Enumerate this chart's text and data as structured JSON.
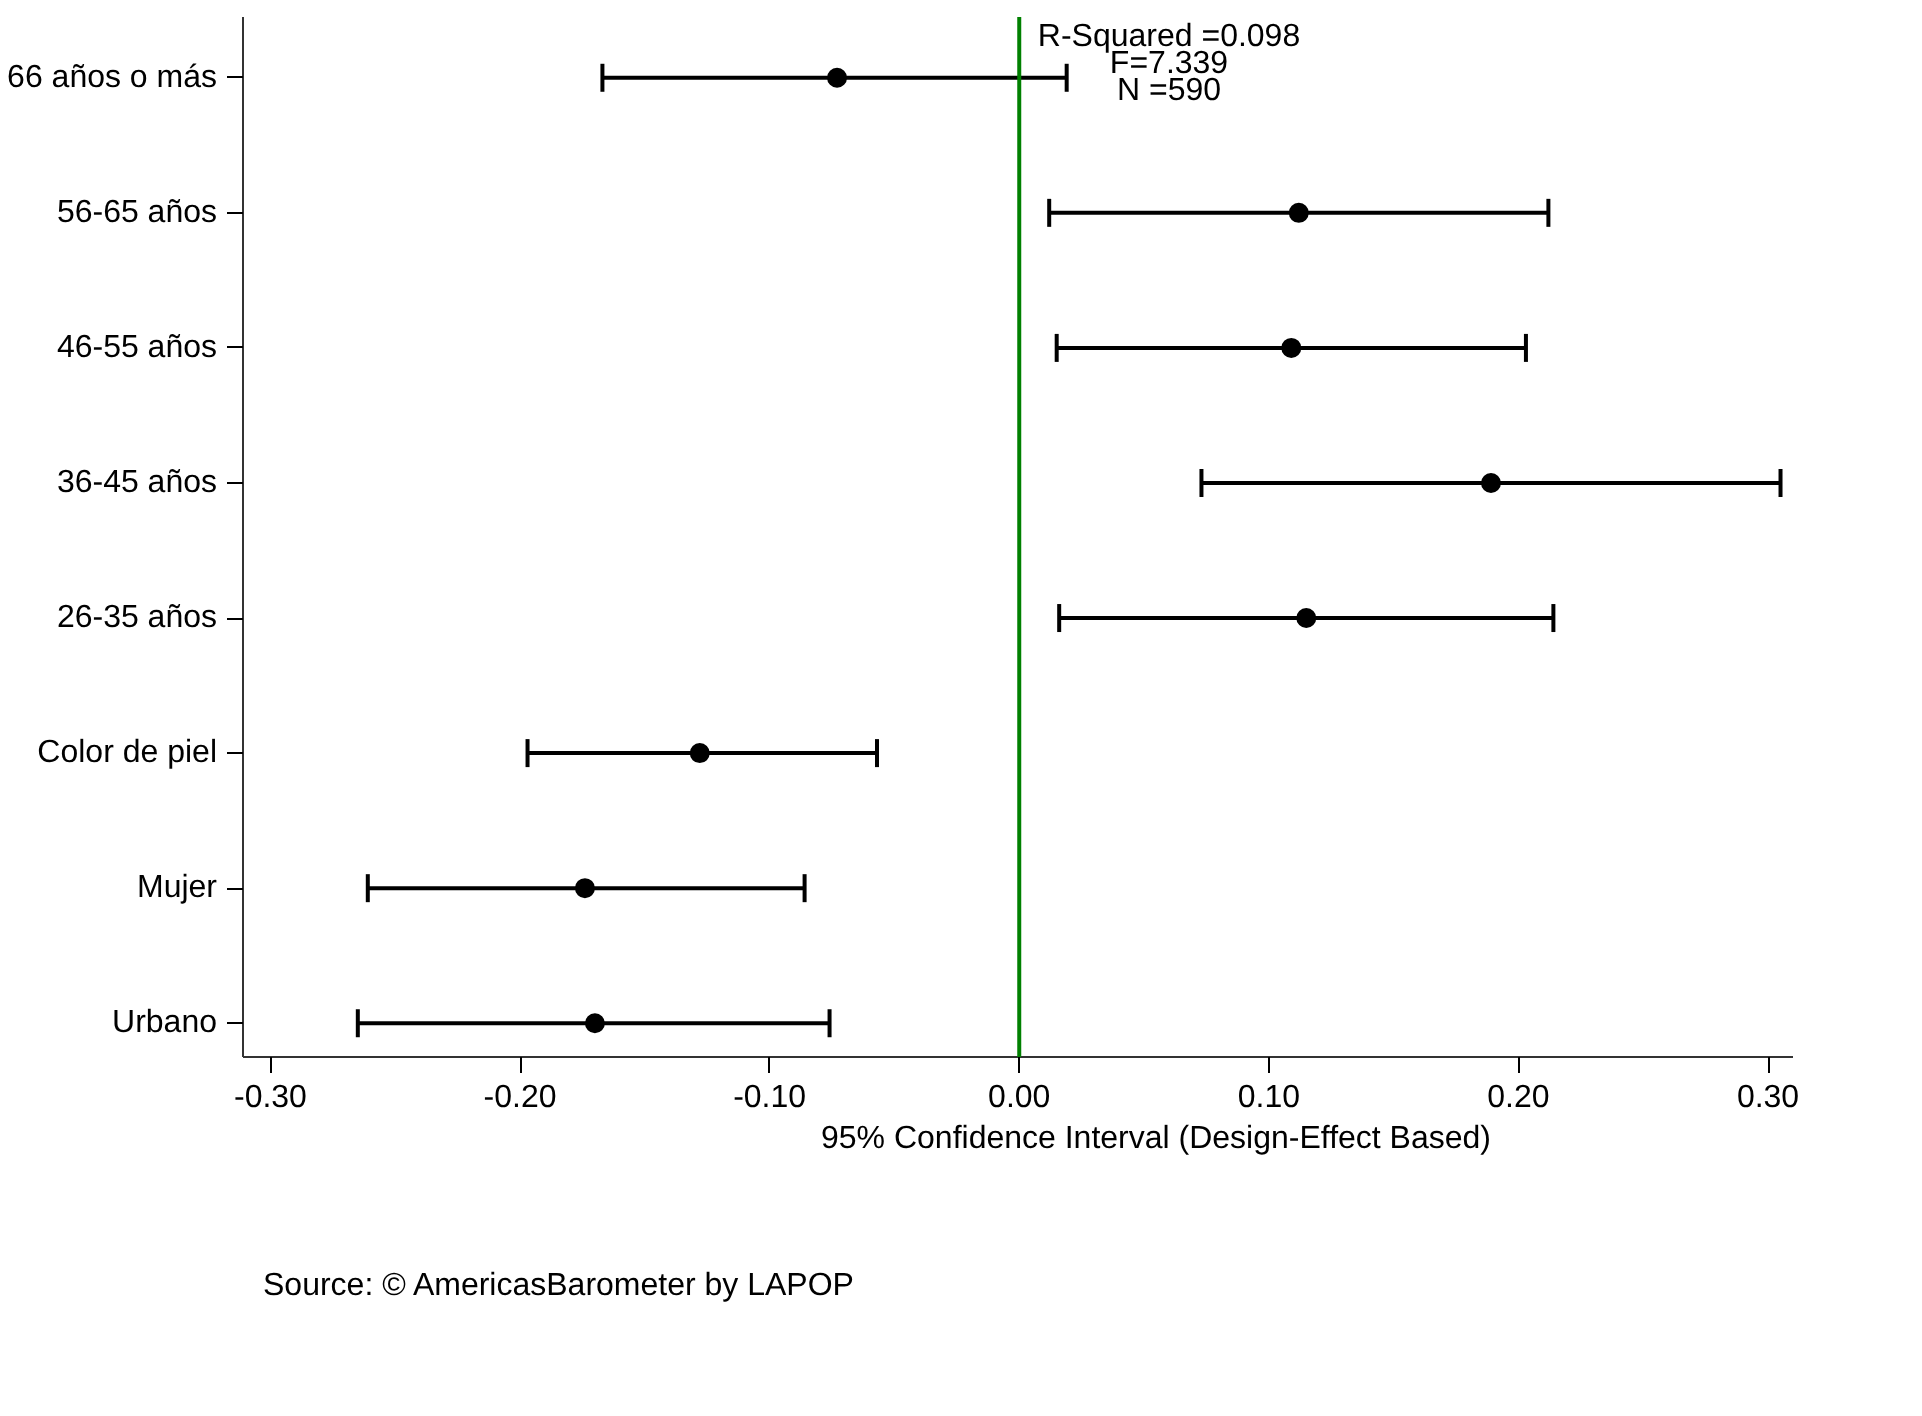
{
  "chart_data": {
    "type": "scatter",
    "orientation": "horizontal",
    "marker": "circle",
    "legend": "bottom",
    "grid": false,
    "categories": [
      "66 años o más",
      "56-65 años",
      "46-55 años",
      "36-45 años",
      "26-35 años",
      "Color de piel",
      "Mujer",
      "Urbano"
    ],
    "series": [
      {
        "name": "95% Confidence Interval (Design-Effect Based)",
        "color": "#000000",
        "values": [
          -0.073,
          0.112,
          0.109,
          0.189,
          0.115,
          -0.128,
          -0.174,
          -0.17
        ],
        "errors": [
          [
            -0.167,
            0.019
          ],
          [
            0.012,
            0.212
          ],
          [
            0.015,
            0.203
          ],
          [
            0.073,
            0.305
          ],
          [
            0.016,
            0.214
          ],
          [
            -0.197,
            -0.057
          ],
          [
            -0.261,
            -0.086
          ],
          [
            -0.265,
            -0.076
          ]
        ]
      }
    ],
    "xlim": [
      -0.311,
      0.31
    ],
    "xticks": [
      {
        "value": -0.3,
        "label": "-0.30"
      },
      {
        "value": -0.2,
        "label": "-0.20"
      },
      {
        "value": -0.1,
        "label": "-0.10"
      },
      {
        "value": 0,
        "label": "0.00"
      },
      {
        "value": 0.1,
        "label": "0.10"
      },
      {
        "value": 0.2,
        "label": "0.20"
      },
      {
        "value": 0.3,
        "label": "0.30"
      }
    ],
    "ref_lines": [
      {
        "axis": "x",
        "value": 0,
        "color": "#008000"
      }
    ],
    "annotations": [
      "R-Squared =0.098",
      "F=7.339",
      "N =590",
      "Source: © AmericasBarometer by LAPOP"
    ]
  }
}
